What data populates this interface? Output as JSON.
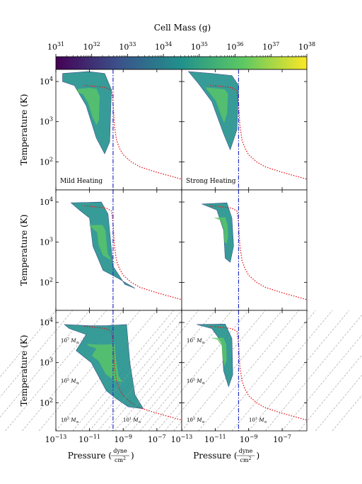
{
  "colorbar": {
    "title": "Cell Mass (g)",
    "tick_labels": [
      {
        "base": "10",
        "exp": "31"
      },
      {
        "base": "10",
        "exp": "32"
      },
      {
        "base": "10",
        "exp": "33"
      },
      {
        "base": "10",
        "exp": "34"
      },
      {
        "base": "10",
        "exp": "35"
      },
      {
        "base": "10",
        "exp": "36"
      },
      {
        "base": "10",
        "exp": "37"
      },
      {
        "base": "10",
        "exp": "38"
      }
    ],
    "range_log10": [
      31,
      38
    ],
    "colors": [
      "#440154",
      "#3b528b",
      "#21918c",
      "#5ec962",
      "#fde725"
    ]
  },
  "axes": {
    "ylabel": "Temperature (K)",
    "xlabel_text": "Pressure (",
    "xlabel_frac_num": "dyne",
    "xlabel_frac_den": "cm",
    "xlabel_frac_den_exp": "2",
    "xlabel_close": ")",
    "y_ticks": [
      {
        "base": "10",
        "exp": "4",
        "v": 4
      },
      {
        "base": "10",
        "exp": "3",
        "v": 3
      },
      {
        "base": "10",
        "exp": "2",
        "v": 2
      }
    ],
    "x_ticks_left": [
      {
        "base": "10",
        "exp": "−13",
        "v": -13
      },
      {
        "base": "10",
        "exp": "−11",
        "v": -11
      },
      {
        "base": "10",
        "exp": "−9",
        "v": -9
      },
      {
        "base": "10",
        "exp": "−7",
        "v": -7
      }
    ],
    "x_ticks_right": [
      {
        "base": "10",
        "exp": "−13",
        "v": -13
      },
      {
        "base": "10",
        "exp": "−11",
        "v": -11
      },
      {
        "base": "10",
        "exp": "−9",
        "v": -9
      },
      {
        "base": "10",
        "exp": "−7",
        "v": -7
      }
    ]
  },
  "panel_labels": {
    "left": "Mild Heating",
    "right": "Strong Heating"
  },
  "mass_labels": [
    {
      "base": "10",
      "exp": "7",
      "unit": "M",
      "sub": "⊙"
    },
    {
      "base": "10",
      "exp": "5",
      "unit": "M",
      "sub": "⊙"
    },
    {
      "base": "10",
      "exp": "3",
      "unit": "M",
      "sub": "⊙"
    },
    {
      "base": "10",
      "exp": "1",
      "unit": "M",
      "sub": "⊙"
    }
  ],
  "chart_data": {
    "type": "heatmap",
    "title": "",
    "xlabel": "Pressure (dyne/cm²)",
    "ylabel": "Temperature (K)",
    "x_scale": "log",
    "y_scale": "log",
    "xlim": [
      1e-13,
      3e-06
    ],
    "ylim": [
      20,
      20000
    ],
    "vertical_dashdot_line_pressure": 2.5e-10,
    "equilibrium_curve_dotted_red": {
      "pressure": [
        5e-12,
        1e-11,
        3e-11,
        1e-10,
        2e-10,
        2.5e-10,
        3e-10,
        4e-10,
        6e-10,
        1e-09,
        3e-09,
        1e-08,
        1e-07,
        1e-06,
        3e-06
      ],
      "temperature": [
        8000,
        7800,
        7500,
        7000,
        6000,
        3000,
        800,
        350,
        220,
        150,
        100,
        75,
        55,
        42,
        37
      ]
    },
    "panels": [
      {
        "row": 1,
        "column": "Mild Heating"
      },
      {
        "row": 1,
        "column": "Strong Heating"
      },
      {
        "row": 2,
        "column": "Mild Heating"
      },
      {
        "row": 2,
        "column": "Strong Heating"
      },
      {
        "row": 3,
        "column": "Mild Heating",
        "jeans_mass_lines": [
          "10^7",
          "10^5",
          "10^3",
          "10^1"
        ]
      },
      {
        "row": 3,
        "column": "Strong Heating",
        "jeans_mass_lines": [
          "10^7",
          "10^5",
          "10^3",
          "10^1"
        ]
      }
    ]
  }
}
